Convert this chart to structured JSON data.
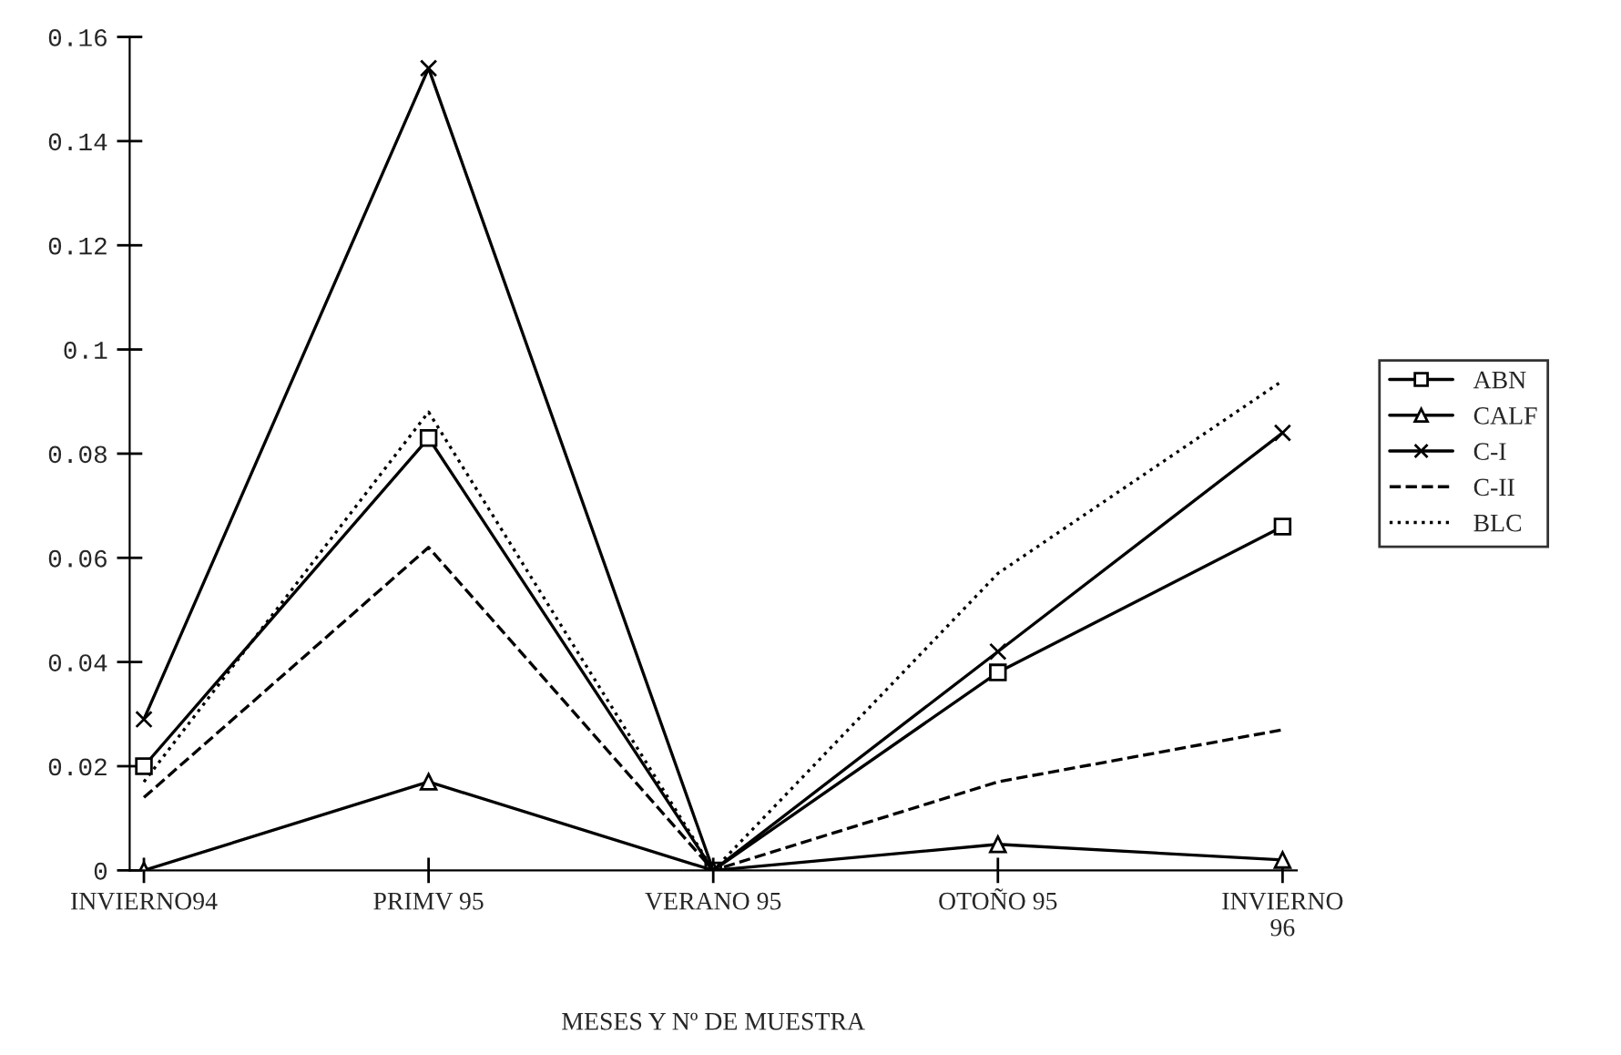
{
  "chart_data": {
    "type": "line",
    "xlabel": "MESES Y Nº DE MUESTRA",
    "categories": [
      "INVIERNO94",
      "PRIMV 95",
      "VERANO 95",
      "OTOÑO 95",
      "INVIERNO\n96"
    ],
    "ylim": [
      0,
      0.16
    ],
    "yticks": [
      0,
      {
        "value": 0.02,
        "label": "0.02"
      },
      {
        "value": 0.04,
        "label": "0.04"
      },
      {
        "value": 0.06,
        "label": "0.06"
      },
      {
        "value": 0.08,
        "label": "0.08"
      },
      {
        "value": 0.1,
        "label": "0.1"
      },
      {
        "value": 0.12,
        "label": "0.12"
      },
      {
        "value": 0.14,
        "label": "0.14"
      },
      {
        "value": 0.16,
        "label": "0.16"
      }
    ],
    "grid": false,
    "legend": "right",
    "series": [
      {
        "name": "ABN",
        "color": "#000000",
        "marker": "square",
        "line_style": "solid",
        "values": [
          0.02,
          0.083,
          0,
          0.038,
          0.066
        ]
      },
      {
        "name": "CALF",
        "color": "#000000",
        "marker": "triangle",
        "line_style": "solid",
        "values": [
          0,
          0.017,
          0,
          0.005,
          0.002
        ]
      },
      {
        "name": "C-I",
        "color": "#000000",
        "marker": "cross",
        "line_style": "solid",
        "values": [
          0.029,
          0.154,
          0,
          0.042,
          0.084
        ]
      },
      {
        "name": "C-II",
        "color": "#000000",
        "marker": "none",
        "line_style": "dashed",
        "values": [
          0.014,
          0.062,
          0,
          0.017,
          0.027
        ]
      },
      {
        "name": "BLC",
        "color": "#000000",
        "marker": "none",
        "line_style": "dotted",
        "values": [
          0.017,
          0.088,
          0,
          0.057,
          0.094
        ]
      }
    ]
  }
}
